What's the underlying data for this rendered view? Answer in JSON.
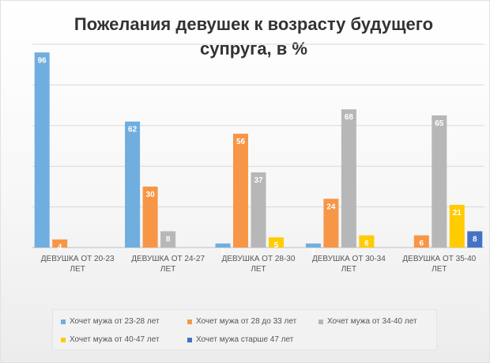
{
  "chart_data": {
    "type": "bar",
    "title": "Пожелания девушек к возрасту будущего супруга, в %",
    "categories": [
      "ДЕВУШКА ОТ 20-23 ЛЕТ",
      "ДЕВУШКА ОТ 24-27 ЛЕТ",
      "ДЕВУШКА ОТ 28-30 ЛЕТ",
      "ДЕВУШКА ОТ 30-34 ЛЕТ",
      "ДЕВУШКА ОТ 35-40 ЛЕТ"
    ],
    "category_lines": [
      [
        "ДЕВУШКА ОТ 20-23",
        "ЛЕТ"
      ],
      [
        "ДЕВУШКА ОТ 24-27",
        "ЛЕТ"
      ],
      [
        "ДЕВУШКА ОТ 28-30",
        "ЛЕТ"
      ],
      [
        "ДЕВУШКА ОТ 30-34",
        "ЛЕТ"
      ],
      [
        "ДЕВУШКА ОТ 35-40",
        "ЛЕТ"
      ]
    ],
    "series": [
      {
        "name": "Хочет мужа от 23-28 лет",
        "color": "#6FAEDF",
        "values": [
          96,
          62,
          2,
          2,
          null
        ]
      },
      {
        "name": "Хочет мужа от 28 до 33 лет",
        "color": "#F79646",
        "values": [
          4,
          30,
          56,
          24,
          6
        ]
      },
      {
        "name": "Хочет мужа от 34-40 лет",
        "color": "#B7B7B7",
        "values": [
          null,
          8,
          37,
          68,
          65
        ]
      },
      {
        "name": "Хочет мужа от 40-47 лет",
        "color": "#FFCC00",
        "values": [
          null,
          null,
          5,
          6,
          21
        ]
      },
      {
        "name": "Хочет мужа старше 47 лет",
        "color": "#4472C4",
        "values": [
          null,
          null,
          null,
          null,
          8
        ]
      }
    ],
    "ylim": [
      0,
      100
    ],
    "grid": true,
    "legend_position": "bottom"
  }
}
